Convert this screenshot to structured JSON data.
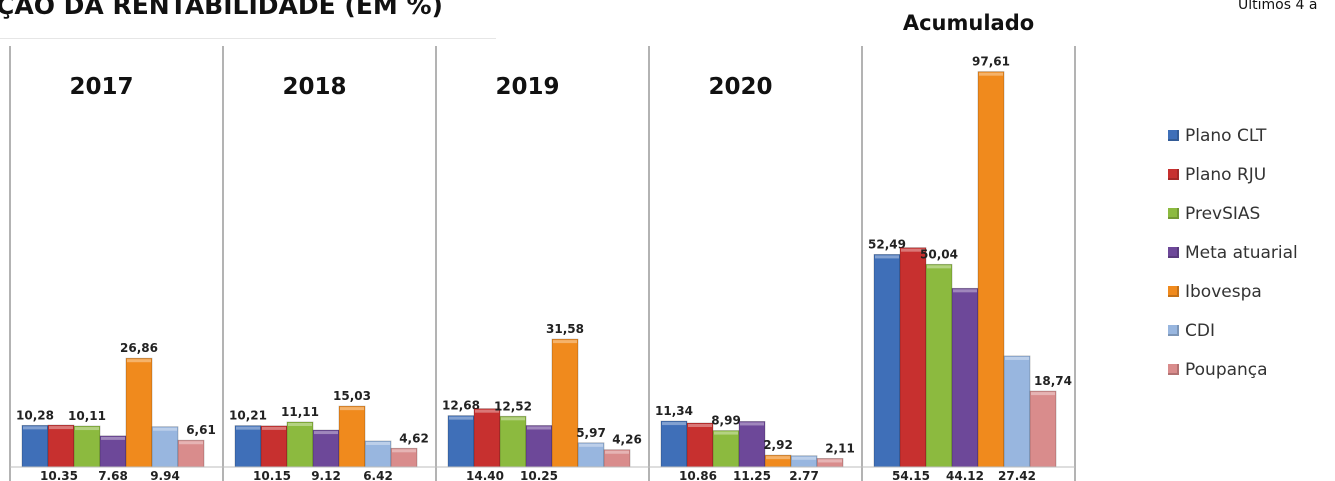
{
  "header": {
    "title": "ÇÃO DA RENTABILIDADE (EM %)",
    "subtitle": "Últimos 4 a"
  },
  "colors": {
    "plano_clt": "#3f6fb8",
    "plano_rju": "#c7302f",
    "prevsias": "#8cba3f",
    "meta_atuarial": "#6d4899",
    "ibovespa": "#f08a1d",
    "cdi": "#98b6df",
    "poupanca": "#d98c8c"
  },
  "chart_data": {
    "type": "bar",
    "categories": [
      "2017",
      "2018",
      "2019",
      "2020",
      "Acumulado"
    ],
    "series": [
      {
        "name": "Plano CLT",
        "values": [
          10.28,
          10.21,
          12.68,
          11.34,
          52.49
        ],
        "labels": [
          "10,28",
          "10,21",
          "12,68",
          "11,34",
          "52,49"
        ]
      },
      {
        "name": "Plano RJU",
        "values": [
          10.35,
          10.15,
          14.4,
          10.86,
          54.15
        ],
        "labels": [
          "10.35",
          "10.15",
          "14.40",
          "10.86",
          "54.15"
        ]
      },
      {
        "name": "PrevSIAS",
        "values": [
          10.11,
          11.11,
          12.52,
          8.99,
          50.04
        ],
        "labels": [
          "10,11",
          "11,11",
          "12,52",
          "8,99",
          "50,04"
        ]
      },
      {
        "name": "Meta atuarial",
        "values": [
          7.68,
          9.12,
          10.25,
          11.25,
          44.12
        ],
        "labels": [
          "7.68",
          "9.12",
          "10.25",
          "11.25",
          "44.12"
        ]
      },
      {
        "name": "Ibovespa",
        "values": [
          26.86,
          15.03,
          31.58,
          2.92,
          97.61
        ],
        "labels": [
          "26,86",
          "15,03",
          "31,58",
          "2,92",
          "97,61"
        ]
      },
      {
        "name": "CDI",
        "values": [
          9.94,
          6.42,
          5.97,
          2.77,
          27.42
        ],
        "labels": [
          "9.94",
          "6.42",
          "5,97",
          "2.77",
          "27.42"
        ]
      },
      {
        "name": "Poupança",
        "values": [
          6.61,
          4.62,
          4.26,
          2.11,
          18.74
        ],
        "labels": [
          "6,61",
          "4,62",
          "4,26",
          "2,11",
          "18,74"
        ]
      }
    ],
    "ylim": [
      0,
      100
    ],
    "grid": false,
    "legend_position": "right"
  }
}
